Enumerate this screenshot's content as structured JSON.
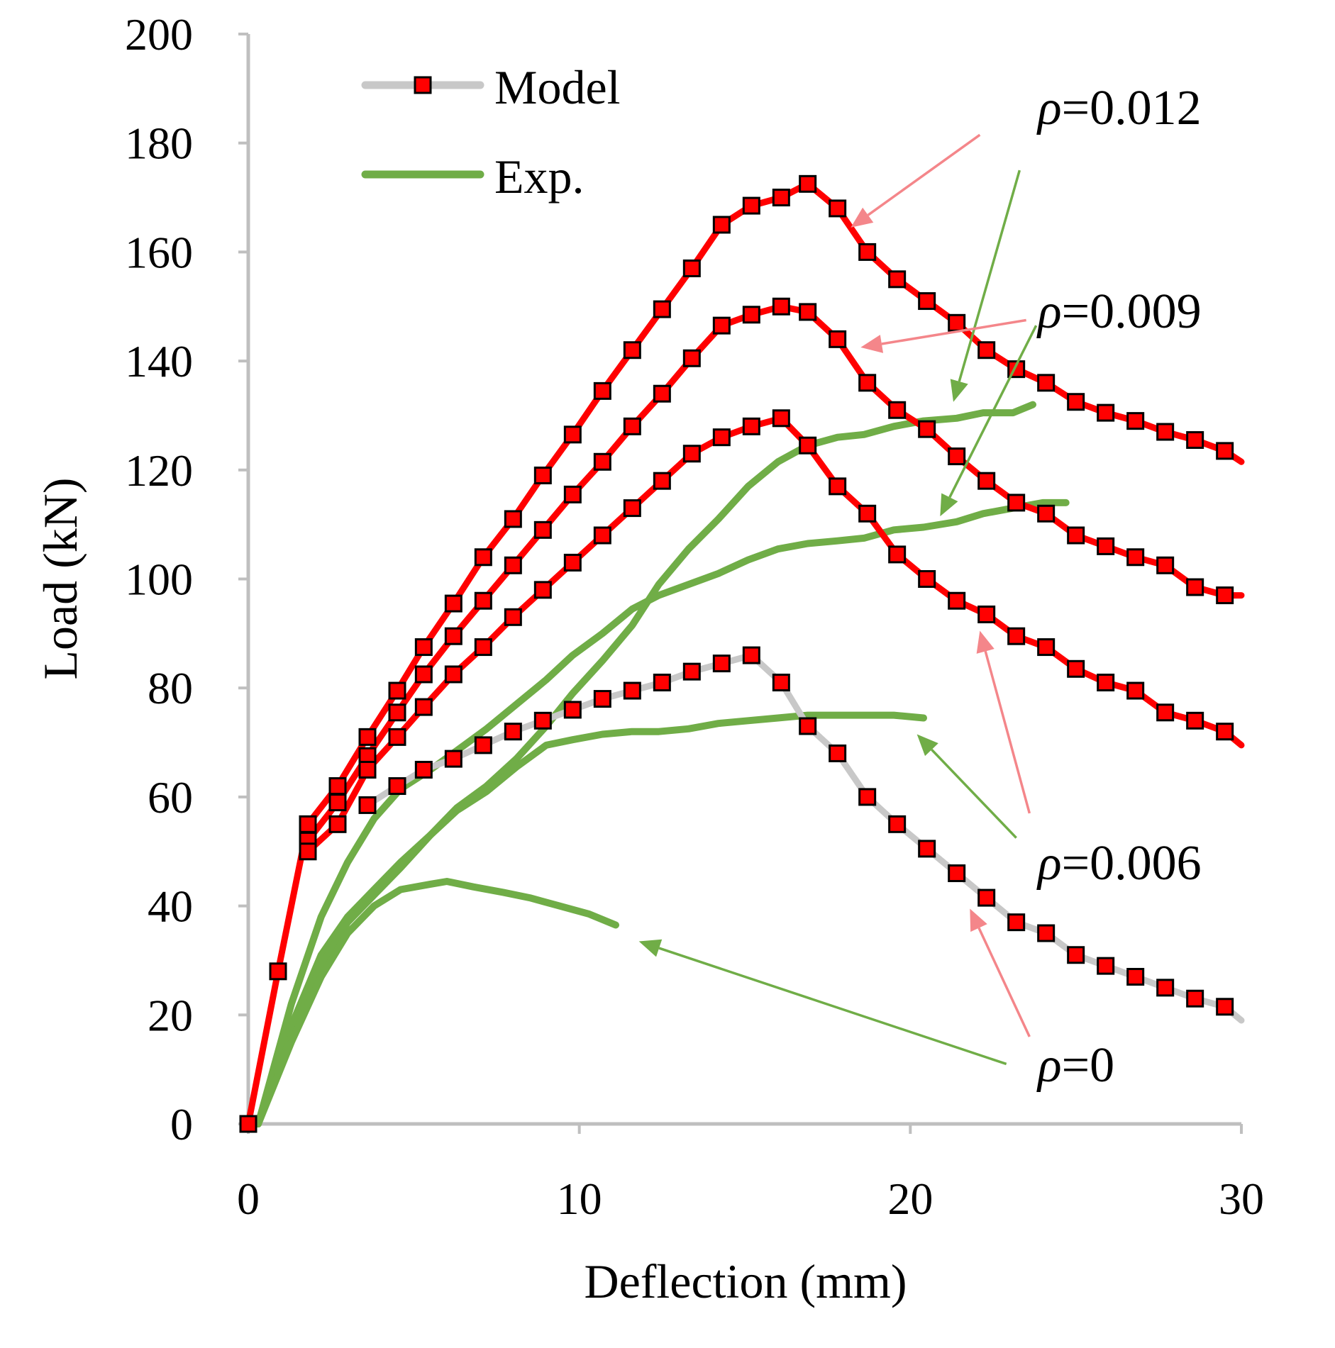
{
  "chart_data": {
    "type": "line",
    "xlabel": "Deflection (mm)",
    "ylabel": "Load (kN)",
    "xlim": [
      0,
      30
    ],
    "ylim": [
      0,
      200
    ],
    "xticks": [
      0,
      10,
      20,
      30
    ],
    "yticks": [
      0,
      20,
      40,
      60,
      80,
      100,
      120,
      140,
      160,
      180,
      200
    ],
    "grid": false,
    "legend": {
      "placement": "top-left",
      "entries": [
        {
          "label": "Model",
          "style": "model"
        },
        {
          "label": "Exp.",
          "style": "exp"
        }
      ]
    },
    "colors": {
      "model_line_red": "#ff0000",
      "model_line_gray": "#c8c8c8",
      "marker_fill": "#ff0000",
      "marker_edge": "#000000",
      "exp_line": "#70ad47",
      "arrow_red": "#f4868a",
      "arrow_green": "#70ad47",
      "axis": "#bfbfbf"
    },
    "series": [
      {
        "group": "ρ=0.012",
        "kind": "model",
        "line_color": "#ff0000",
        "markers": true,
        "x": [
          0,
          0.9,
          1.8,
          2.7,
          3.6,
          4.5,
          5.3,
          6.2,
          7.1,
          8.0,
          8.9,
          9.8,
          10.7,
          11.6,
          12.5,
          13.4,
          14.3,
          15.2,
          16.1,
          16.9,
          17.8,
          18.7,
          19.6,
          20.5,
          21.4,
          22.3,
          23.2,
          24.1,
          25.0,
          25.9,
          26.8,
          27.7,
          28.6,
          29.5,
          30.0
        ],
        "y": [
          0,
          28,
          55,
          62,
          71,
          79.5,
          87.5,
          95.5,
          104,
          111,
          119,
          126.5,
          134.5,
          142,
          149.5,
          157,
          165,
          168.5,
          170,
          172.5,
          168,
          160,
          155,
          151,
          147,
          142,
          138.5,
          136,
          132.5,
          130.5,
          129,
          127,
          125.5,
          123.5,
          121.5
        ]
      },
      {
        "group": "ρ=0.009",
        "kind": "model",
        "line_color": "#ff0000",
        "markers": true,
        "x": [
          1.8,
          2.7,
          3.6,
          4.5,
          5.3,
          6.2,
          7.1,
          8.0,
          8.9,
          9.8,
          10.7,
          11.6,
          12.5,
          13.4,
          14.3,
          15.2,
          16.1,
          16.9,
          17.8,
          18.7,
          19.6,
          20.5,
          21.4,
          22.3,
          23.2,
          24.1,
          25.0,
          25.9,
          26.8,
          27.7,
          28.6,
          29.5,
          30.0
        ],
        "y": [
          52,
          59,
          67.5,
          75.5,
          82.5,
          89.5,
          96,
          102.5,
          109,
          115.5,
          121.5,
          128,
          134,
          140.5,
          146.5,
          148.5,
          150,
          149,
          144,
          136,
          131,
          127.5,
          122.5,
          118,
          114,
          112,
          108,
          106,
          104,
          102.5,
          98.5,
          97,
          97
        ]
      },
      {
        "group": "ρ=0.006",
        "kind": "model",
        "line_color": "#ff0000",
        "markers": true,
        "x": [
          1.8,
          2.7,
          3.6,
          4.5,
          5.3,
          6.2,
          7.1,
          8.0,
          8.9,
          9.8,
          10.7,
          11.6,
          12.5,
          13.4,
          14.3,
          15.2,
          16.1,
          16.9,
          17.8,
          18.7,
          19.6,
          20.5,
          21.4,
          22.3,
          23.2,
          24.1,
          25.0,
          25.9,
          26.8,
          27.7,
          28.6,
          29.5,
          30.0
        ],
        "y": [
          50,
          55,
          65,
          71,
          76.5,
          82.5,
          87.5,
          93,
          98,
          103,
          108,
          113,
          118,
          123,
          126,
          128,
          129.5,
          124.5,
          117,
          112,
          104.5,
          100,
          96,
          93.5,
          89.5,
          87.5,
          83.5,
          81,
          79.5,
          75.5,
          74,
          72,
          69.5
        ]
      },
      {
        "group": "ρ=0",
        "kind": "model",
        "line_color": "#c8c8c8",
        "markers": true,
        "x": [
          3.6,
          4.5,
          5.3,
          6.2,
          7.1,
          8.0,
          8.9,
          9.8,
          10.7,
          11.6,
          12.5,
          13.4,
          14.3,
          15.2,
          16.1,
          16.9,
          17.8,
          18.7,
          19.6,
          20.5,
          21.4,
          22.3,
          23.2,
          24.1,
          25.0,
          25.9,
          26.8,
          27.7,
          28.6,
          29.5,
          30.0
        ],
        "y": [
          58.5,
          62,
          65,
          67,
          69.5,
          72,
          74,
          76,
          78,
          79.5,
          81,
          83,
          84.5,
          86,
          81,
          73,
          68,
          60,
          55,
          50.5,
          46,
          41.5,
          37,
          35,
          31,
          29,
          27,
          25,
          23,
          21.5,
          19
        ]
      },
      {
        "group": "ρ=0.012",
        "kind": "exp",
        "line_color": "#70ad47",
        "markers": false,
        "x": [
          0.3,
          1.3,
          2.2,
          3.0,
          3.8,
          4.6,
          5.5,
          6.3,
          7.2,
          8.1,
          9.0,
          9.8,
          10.7,
          11.6,
          12.4,
          13.3,
          14.2,
          15.1,
          16.0,
          16.9,
          17.8,
          18.6,
          19.5,
          20.4,
          21.4,
          22.2,
          23.1,
          23.7
        ],
        "y": [
          0,
          18,
          31,
          38,
          43,
          48,
          53,
          58,
          62,
          67,
          73,
          79,
          85,
          91.5,
          99,
          105.5,
          111,
          117,
          121.5,
          124.5,
          126,
          126.5,
          128,
          129,
          129.5,
          130.5,
          130.5,
          132
        ]
      },
      {
        "group": "ρ=0.009",
        "kind": "exp",
        "line_color": "#70ad47",
        "markers": false,
        "x": [
          0.3,
          1.3,
          2.2,
          3.0,
          3.8,
          4.6,
          5.5,
          6.3,
          7.2,
          8.1,
          9.0,
          9.8,
          10.7,
          11.6,
          12.4,
          13.3,
          14.2,
          15.1,
          16.0,
          16.9,
          17.8,
          18.6,
          19.5,
          20.4,
          21.4,
          22.2,
          23.1,
          24.0,
          24.7
        ],
        "y": [
          0,
          22,
          38,
          48,
          56,
          61.5,
          65,
          68.5,
          72.5,
          77,
          81.5,
          86,
          90,
          94.5,
          97,
          99,
          101,
          103.5,
          105.5,
          106.5,
          107,
          107.5,
          109,
          109.5,
          110.5,
          112,
          113,
          114,
          114
        ]
      },
      {
        "group": "ρ=0.006",
        "kind": "exp",
        "line_color": "#70ad47",
        "markers": false,
        "x": [
          0.3,
          1.3,
          2.2,
          3.0,
          3.8,
          4.6,
          5.5,
          6.3,
          7.2,
          8.1,
          9.0,
          9.8,
          10.7,
          11.6,
          12.4,
          13.3,
          14.2,
          15.1,
          16.0,
          16.9,
          17.8,
          18.6,
          19.5,
          20.4
        ],
        "y": [
          0,
          16,
          29,
          37,
          42,
          47,
          53,
          57.5,
          61,
          65.5,
          69.5,
          70.5,
          71.5,
          72,
          72,
          72.5,
          73.5,
          74,
          74.5,
          75,
          75,
          75,
          75,
          74.5
        ]
      },
      {
        "group": "ρ=0",
        "kind": "exp",
        "line_color": "#70ad47",
        "markers": false,
        "x": [
          0.3,
          1.3,
          2.2,
          3.0,
          3.8,
          4.6,
          5.5,
          6.0,
          6.8,
          7.7,
          8.5,
          9.4,
          10.3,
          11.1
        ],
        "y": [
          0,
          15,
          27,
          35,
          40,
          43,
          44,
          44.5,
          43.5,
          42.5,
          41.5,
          40,
          38.5,
          36.5
        ]
      }
    ],
    "annotations": [
      {
        "text": "ρ=0.012",
        "arrows": [
          {
            "color": "red",
            "from": [
              22.1,
              181.5
            ],
            "to": [
              18.2,
              164.5
            ]
          },
          {
            "color": "green",
            "from": [
              23.3,
              175
            ],
            "to": [
              21.3,
              132.5
            ]
          }
        ]
      },
      {
        "text": "ρ=0.009",
        "arrows": [
          {
            "color": "red",
            "from": [
              23.5,
              147.5
            ],
            "to": [
              18.5,
              142.5
            ]
          },
          {
            "color": "green",
            "from": [
              23.8,
              146.5
            ],
            "to": [
              20.9,
              111.5
            ]
          }
        ]
      },
      {
        "text": "ρ=0.006",
        "arrows": [
          {
            "color": "red",
            "from": [
              23.6,
              57
            ],
            "to": [
              22.1,
              90.5
            ]
          },
          {
            "color": "green",
            "from": [
              23.2,
              52.5
            ],
            "to": [
              20.2,
              71.5
            ]
          }
        ]
      },
      {
        "text": "ρ=0",
        "arrows": [
          {
            "color": "red",
            "from": [
              23.6,
              16
            ],
            "to": [
              21.8,
              39.5
            ]
          },
          {
            "color": "green",
            "from": [
              22.9,
              11
            ],
            "to": [
              11.8,
              33.5
            ]
          }
        ]
      }
    ]
  }
}
